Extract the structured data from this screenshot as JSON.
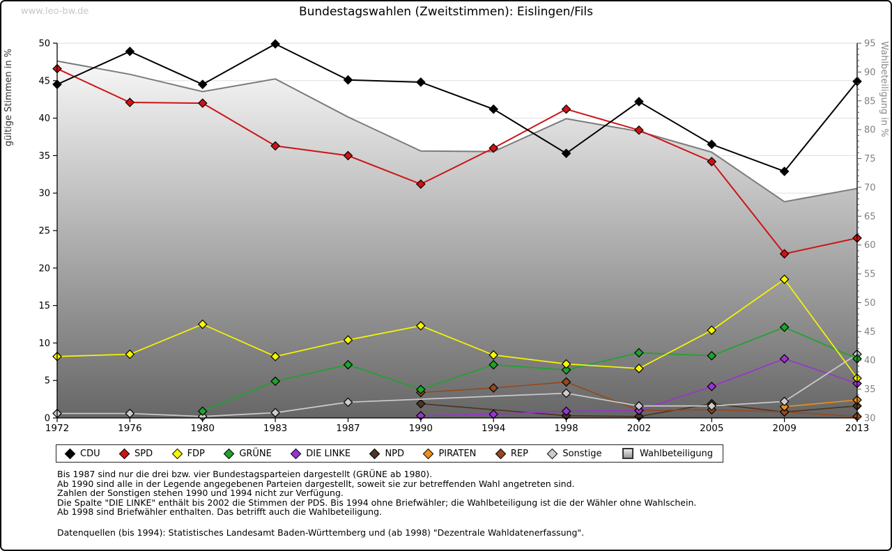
{
  "page": {
    "watermark": "www.leo-bw.de",
    "title": "Bundestagswahlen (Zweitstimmen): Eislingen/Fils"
  },
  "chart_data": {
    "type": "line",
    "title": "Bundestagswahlen (Zweitstimmen): Eislingen/Fils",
    "x_categories": [
      "1972",
      "1976",
      "1980",
      "1983",
      "1987",
      "1990",
      "1994",
      "1998",
      "2002",
      "2005",
      "2009",
      "2013"
    ],
    "left_axis": {
      "label": "gültige Stimmen in %",
      "min": 0,
      "max": 50,
      "tick_step": 5
    },
    "right_axis": {
      "label": "Wahlbeteiligung in %",
      "min": 30,
      "max": 95,
      "tick_step": 5
    },
    "grid": true,
    "legend_position": "bottom",
    "area_gradient": [
      "#ffffff",
      "#666666"
    ],
    "marker_stroke": "#000000",
    "series": [
      {
        "name": "CDU",
        "color": "#000000",
        "axis": "left",
        "kind": "line",
        "values": [
          44.5,
          48.9,
          44.5,
          49.9,
          45.1,
          44.8,
          41.2,
          35.3,
          42.2,
          36.5,
          32.9,
          44.9
        ]
      },
      {
        "name": "SPD",
        "color": "#cc1417",
        "axis": "left",
        "kind": "line",
        "values": [
          46.6,
          42.1,
          42.0,
          36.3,
          35.0,
          31.2,
          36.0,
          41.2,
          38.4,
          34.2,
          21.9,
          24.0
        ]
      },
      {
        "name": "FDP",
        "color": "#f7f700",
        "axis": "left",
        "kind": "line",
        "values": [
          8.2,
          8.5,
          12.5,
          8.2,
          10.4,
          12.3,
          8.4,
          7.2,
          6.6,
          11.7,
          18.5,
          5.3
        ]
      },
      {
        "name": "GRÜNE",
        "color": "#1ea32b",
        "axis": "left",
        "kind": "line",
        "values": [
          null,
          null,
          0.9,
          4.9,
          7.1,
          3.8,
          7.1,
          6.4,
          8.7,
          8.3,
          12.1,
          7.9
        ]
      },
      {
        "name": "DIE LINKE",
        "color": "#9934cc",
        "axis": "left",
        "kind": "line",
        "values": [
          null,
          null,
          null,
          null,
          null,
          0.3,
          0.5,
          0.9,
          1.0,
          4.2,
          7.9,
          4.6
        ]
      },
      {
        "name": "NPD",
        "color": "#4e3524",
        "axis": "left",
        "kind": "line",
        "values": [
          null,
          null,
          null,
          null,
          null,
          1.9,
          null,
          0.3,
          0.2,
          1.9,
          0.8,
          1.6
        ]
      },
      {
        "name": "PIRATEN",
        "color": "#ef8e1a",
        "axis": "left",
        "kind": "line",
        "values": [
          null,
          null,
          null,
          null,
          null,
          null,
          null,
          null,
          null,
          null,
          1.5,
          2.4
        ]
      },
      {
        "name": "REP",
        "color": "#95491e",
        "axis": "left",
        "kind": "line",
        "values": [
          null,
          null,
          null,
          null,
          null,
          3.4,
          4.0,
          4.8,
          1.0,
          1.1,
          0.8,
          0.2
        ]
      },
      {
        "name": "Sonstige",
        "color": "#cccccc",
        "axis": "left",
        "kind": "line",
        "values": [
          0.6,
          0.6,
          0.2,
          0.7,
          2.1,
          null,
          null,
          3.3,
          1.6,
          1.6,
          2.2,
          8.5
        ]
      },
      {
        "name": "Wahlbeteiligung",
        "color": "#7b7b7b",
        "axis": "right",
        "kind": "area",
        "values": [
          91.9,
          89.6,
          86.6,
          88.8,
          82.2,
          76.3,
          76.2,
          81.9,
          79.7,
          76.1,
          67.5,
          69.8
        ]
      }
    ]
  },
  "footnotes": [
    "Bis 1987 sind nur die drei bzw. vier Bundestagsparteien dargestellt (GRÜNE ab 1980).",
    "Ab 1990 sind alle in der Legende angegebenen Parteien dargestellt, soweit sie zur betreffenden Wahl angetreten sind.",
    "Zahlen der Sonstigen stehen 1990 und 1994 nicht zur Verfügung.",
    "Die Spalte \"DIE LINKE\" enthält bis 2002 die Stimmen der PDS. Bis 1994 ohne Briefwähler; die Wahlbeteiligung ist die der Wähler ohne Wahlschein.",
    "Ab 1998 sind Briefwähler enthalten. Das betrifft auch die Wahlbeteiligung."
  ],
  "source_note": "Datenquellen (bis 1994): Statistisches Landesamt Baden-Württemberg und (ab 1998) \"Dezentrale Wahldatenerfassung\"."
}
